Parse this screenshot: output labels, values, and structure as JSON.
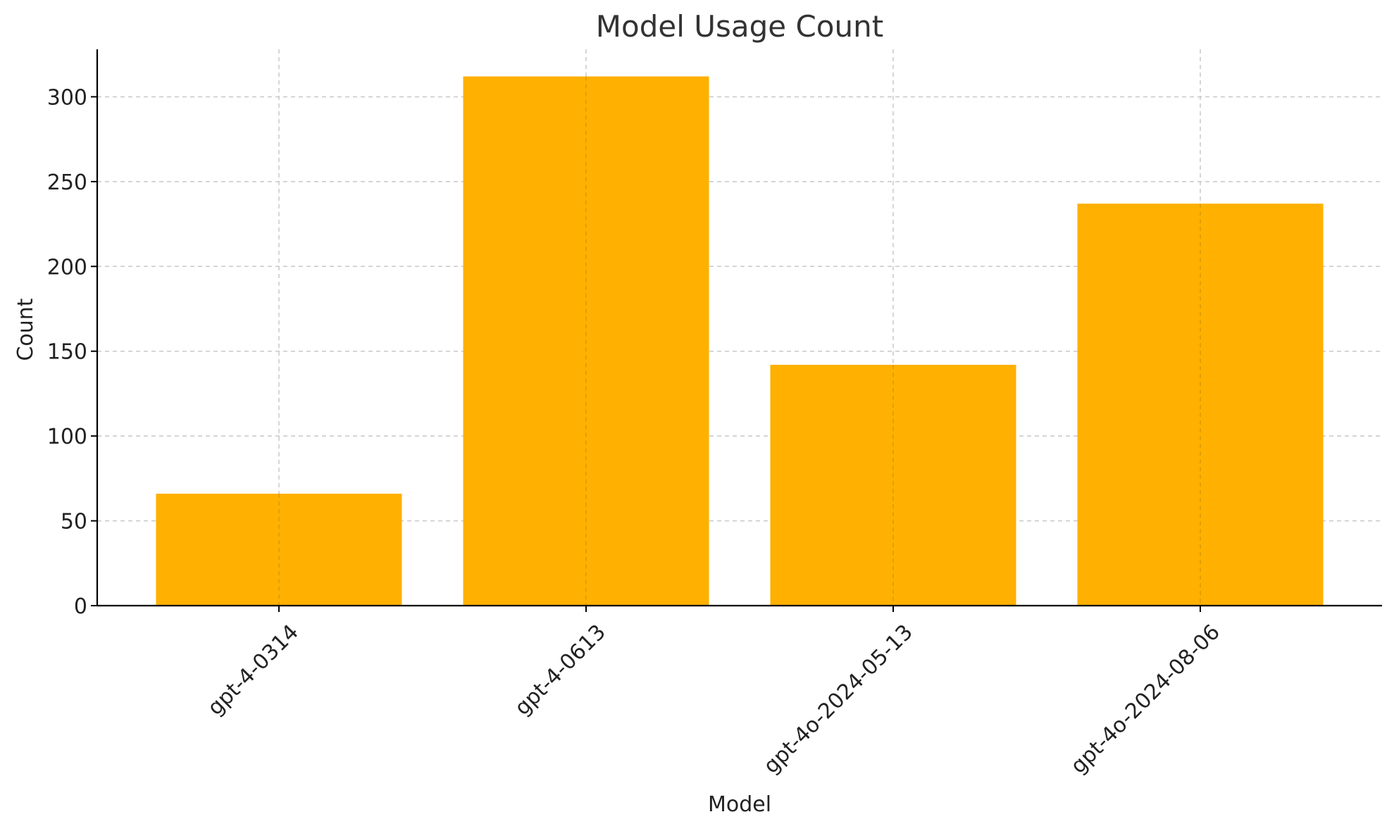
{
  "chart_data": {
    "type": "bar",
    "title": "Model Usage Count",
    "xlabel": "Model",
    "ylabel": "Count",
    "categories": [
      "gpt-4-0314",
      "gpt-4-0613",
      "gpt-4o-2024-05-13",
      "gpt-4o-2024-08-06"
    ],
    "values": [
      66,
      312,
      142,
      237
    ],
    "ylim": [
      0,
      328
    ],
    "yticks": [
      0,
      50,
      100,
      150,
      200,
      250,
      300
    ],
    "grid": true,
    "x_tick_rotation_deg": 45,
    "bar_color": "#FFB000",
    "grid_color": "#c8c8c8",
    "axis_color": "#000000"
  }
}
